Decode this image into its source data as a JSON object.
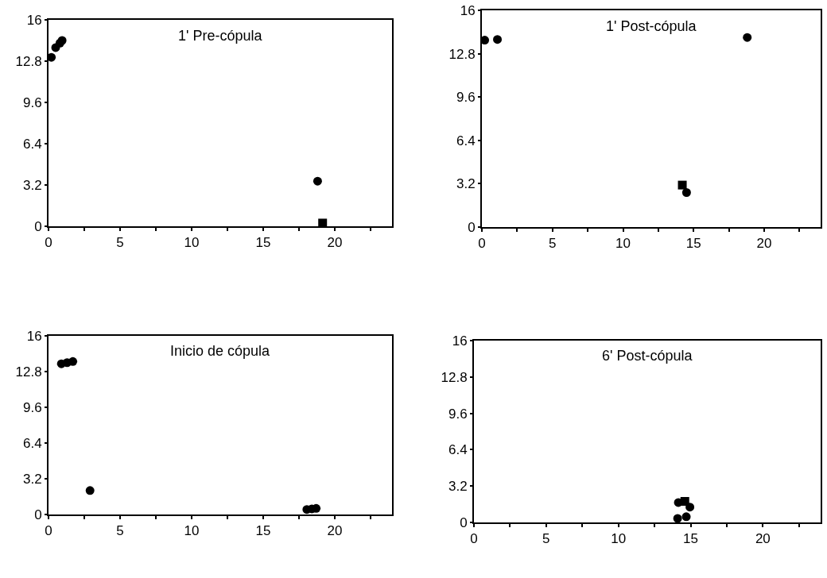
{
  "chart_data": [
    {
      "type": "scatter",
      "title": "1' Pre-cópula",
      "marker": "circle",
      "grid": false,
      "xlim": [
        0,
        24
      ],
      "ylim": [
        0,
        16
      ],
      "xticks": [
        0,
        {
          "value": 2.5,
          "label": null
        },
        5,
        {
          "value": 7.5,
          "label": null
        },
        10,
        {
          "value": 12.5,
          "label": null
        },
        15,
        {
          "value": 17.5,
          "label": null
        },
        20,
        {
          "value": 22.5,
          "label": null
        }
      ],
      "yticks": [
        0,
        3.2,
        6.4,
        9.6,
        12.8,
        16
      ],
      "series": [
        {
          "color": "#000000",
          "x": [
            0.2,
            0.5,
            0.8,
            0.95,
            18.8
          ],
          "values": [
            13.1,
            13.85,
            14.2,
            14.4,
            3.5
          ]
        },
        {
          "color": "#000000",
          "marker": "square",
          "x": [
            19.15
          ],
          "values": [
            0.25
          ]
        }
      ]
    },
    {
      "type": "scatter",
      "title": "1' Post-cópula",
      "marker": "circle",
      "grid": false,
      "xlim": [
        0,
        24
      ],
      "ylim": [
        0,
        16
      ],
      "xticks": [
        0,
        {
          "value": 2.5,
          "label": null
        },
        5,
        {
          "value": 7.5,
          "label": null
        },
        10,
        {
          "value": 12.5,
          "label": null
        },
        15,
        {
          "value": 17.5,
          "label": null
        },
        20,
        {
          "value": 22.5,
          "label": null
        }
      ],
      "yticks": [
        0,
        3.2,
        6.4,
        9.6,
        12.8,
        16
      ],
      "series": [
        {
          "color": "#000000",
          "x": [
            0.2,
            1.1,
            18.8,
            14.5
          ],
          "values": [
            13.8,
            13.85,
            14.0,
            2.55
          ]
        },
        {
          "color": "#000000",
          "marker": "square",
          "x": [
            14.2
          ],
          "values": [
            3.1
          ]
        }
      ]
    },
    {
      "type": "scatter",
      "title": "Inicio de cópula",
      "marker": "circle",
      "grid": false,
      "xlim": [
        0,
        24
      ],
      "ylim": [
        0,
        16
      ],
      "xticks": [
        0,
        {
          "value": 2.5,
          "label": null
        },
        5,
        {
          "value": 7.5,
          "label": null
        },
        10,
        {
          "value": 12.5,
          "label": null
        },
        15,
        {
          "value": 17.5,
          "label": null
        },
        20,
        {
          "value": 22.5,
          "label": null
        }
      ],
      "yticks": [
        0,
        3.2,
        6.4,
        9.6,
        12.8,
        16
      ],
      "series": [
        {
          "color": "#000000",
          "x": [
            0.9,
            1.3,
            1.7,
            2.9,
            18.05,
            18.4,
            18.7
          ],
          "values": [
            13.5,
            13.6,
            13.7,
            2.15,
            0.45,
            0.5,
            0.55
          ]
        }
      ]
    },
    {
      "type": "scatter",
      "title": "6' Post-cópula",
      "marker": "circle",
      "grid": false,
      "xlim": [
        0,
        24
      ],
      "ylim": [
        0,
        16
      ],
      "xticks": [
        0,
        {
          "value": 2.5,
          "label": null
        },
        5,
        {
          "value": 7.5,
          "label": null
        },
        10,
        {
          "value": 12.5,
          "label": null
        },
        15,
        {
          "value": 17.5,
          "label": null
        },
        20,
        {
          "value": 22.5,
          "label": null
        }
      ],
      "yticks": [
        0,
        3.2,
        6.4,
        9.6,
        12.8,
        16
      ],
      "series": [
        {
          "color": "#000000",
          "x": [
            14.15,
            14.95,
            14.1,
            14.7
          ],
          "values": [
            1.75,
            1.35,
            0.35,
            0.5
          ]
        },
        {
          "color": "#000000",
          "marker": "square",
          "x": [
            14.6
          ],
          "values": [
            1.85
          ]
        }
      ]
    }
  ]
}
